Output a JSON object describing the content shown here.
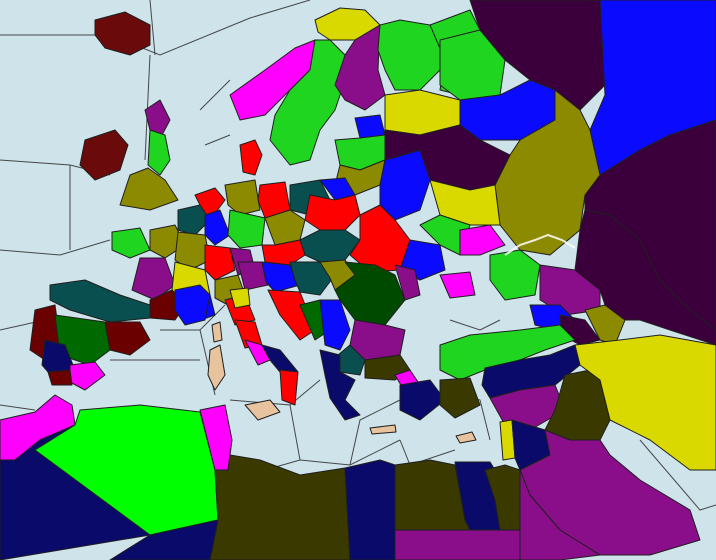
{
  "map": {
    "colors": {
      "sea": "#cfe3ea",
      "magenta": "#ff00ff",
      "yellow": "#d9d900",
      "purple": "#8a0e8a",
      "green": "#1fd51f",
      "blue": "#0a0aff",
      "navy": "#0a0a6a",
      "darkPurple": "#3b003b",
      "olive": "#8c8a00",
      "red": "#ff0000",
      "darkRed": "#6a0000",
      "teal": "#0a4f4f",
      "lime": "#00ff00",
      "darkOlive": "#3a3a00",
      "tan": "#e7c39e",
      "forest": "#004a00",
      "maroon": "#6a0a0a"
    }
  }
}
